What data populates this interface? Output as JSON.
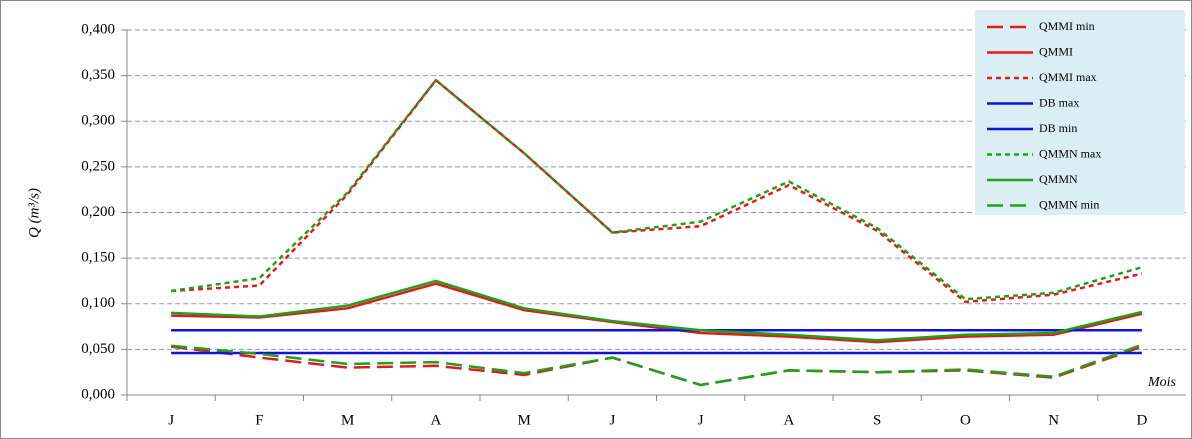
{
  "chart_data": {
    "type": "line",
    "ylabel": "Q (m³/s)",
    "xlabel": "Mois",
    "categories": [
      "J",
      "F",
      "M",
      "A",
      "M",
      "J",
      "J",
      "A",
      "S",
      "O",
      "N",
      "D"
    ],
    "ylim": [
      0,
      0.4
    ],
    "yticks": [
      {
        "value": 0,
        "label": "0,000"
      },
      {
        "value": 0.05,
        "label": "0,050"
      },
      {
        "value": 0.1,
        "label": "0,100"
      },
      {
        "value": 0.15,
        "label": "0,150"
      },
      {
        "value": 0.2,
        "label": "0,200"
      },
      {
        "value": 0.25,
        "label": "0,250"
      },
      {
        "value": 0.3,
        "label": "0,300"
      },
      {
        "value": 0.35,
        "label": "0,350"
      },
      {
        "value": 0.4,
        "label": "0,400"
      }
    ],
    "grid": true,
    "legend": "upper right",
    "series": [
      {
        "name": "QMMI min",
        "color": "#e31a1c",
        "dash": "long",
        "values": [
          0.053,
          0.041,
          0.03,
          0.032,
          0.022,
          0.041,
          0.011,
          0.027,
          0.025,
          0.027,
          0.019,
          0.053
        ]
      },
      {
        "name": "QMMI",
        "color": "#e31a1c",
        "dash": "solid",
        "values": [
          0.087,
          0.085,
          0.095,
          0.122,
          0.093,
          0.08,
          0.068,
          0.064,
          0.058,
          0.064,
          0.066,
          0.089
        ]
      },
      {
        "name": "QMMI max",
        "color": "#e31a1c",
        "dash": "short",
        "values": [
          0.114,
          0.12,
          0.22,
          0.345,
          0.265,
          0.178,
          0.185,
          0.23,
          0.18,
          0.102,
          0.11,
          0.133
        ]
      },
      {
        "name": "DB max",
        "color": "#1010e0",
        "dash": "solid",
        "values": [
          0.071,
          0.071,
          0.071,
          0.071,
          0.071,
          0.071,
          0.071,
          0.071,
          0.071,
          0.071,
          0.071,
          0.071
        ]
      },
      {
        "name": "DB min",
        "color": "#1010e0",
        "dash": "solid",
        "values": [
          0.046,
          0.046,
          0.046,
          0.046,
          0.046,
          0.046,
          0.046,
          0.046,
          0.046,
          0.046,
          0.046,
          0.046
        ]
      },
      {
        "name": "QMMN max",
        "color": "#1fa01f",
        "dash": "short",
        "values": [
          0.114,
          0.128,
          0.222,
          0.345,
          0.265,
          0.178,
          0.19,
          0.234,
          0.183,
          0.105,
          0.112,
          0.14
        ]
      },
      {
        "name": "QMMN",
        "color": "#1fa01f",
        "dash": "solid",
        "values": [
          0.09,
          0.086,
          0.098,
          0.125,
          0.095,
          0.081,
          0.071,
          0.066,
          0.06,
          0.066,
          0.068,
          0.091
        ]
      },
      {
        "name": "QMMN min",
        "color": "#1fa01f",
        "dash": "long",
        "values": [
          0.054,
          0.045,
          0.034,
          0.036,
          0.024,
          0.041,
          0.011,
          0.027,
          0.025,
          0.028,
          0.02,
          0.055
        ]
      }
    ]
  }
}
